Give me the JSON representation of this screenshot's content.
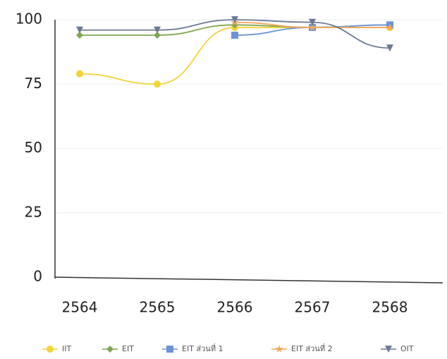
{
  "chart_data": {
    "type": "line",
    "categories": [
      "2564",
      "2565",
      "2566",
      "2567",
      "2568"
    ],
    "series": [
      {
        "name": "IIT",
        "color": "#f2d43a",
        "marker": "circle",
        "values": [
          79,
          75,
          97,
          97,
          97
        ]
      },
      {
        "name": "EIT",
        "color": "#7fa650",
        "marker": "diamond",
        "values": [
          94,
          94,
          98,
          97,
          98
        ]
      },
      {
        "name": "EIT ส่วนที่ 1",
        "color": "#6b93d6",
        "marker": "square",
        "values": [
          null,
          null,
          94,
          97,
          98
        ]
      },
      {
        "name": "EIT ส่วนที่ 2",
        "color": "#f2a85a",
        "marker": "star",
        "values": [
          null,
          null,
          99,
          97,
          97
        ]
      },
      {
        "name": "OIT",
        "color": "#6d7a96",
        "marker": "triangle-down",
        "values": [
          96,
          96,
          100,
          99,
          89
        ]
      }
    ],
    "ylim": [
      0,
      100
    ],
    "yticks": [
      0,
      25,
      50,
      75,
      100
    ],
    "grid": true,
    "legend": "bottom"
  }
}
